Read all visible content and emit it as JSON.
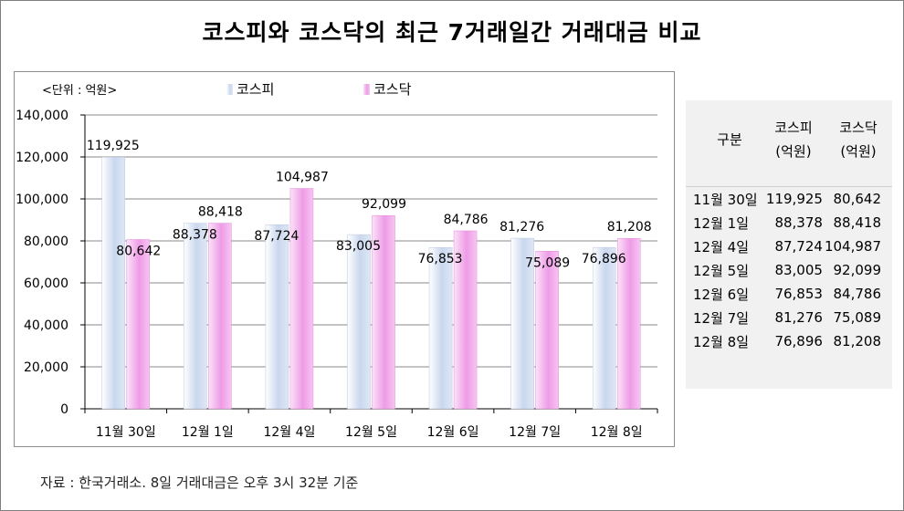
{
  "title": "코스피와 코스닥의 최근 7거래일간 거래대금 비교",
  "source_note": "자료 : 한국거래소. 8일 거래대금은 오후 3시 32분 기준",
  "colors": {
    "kospi": "#c9d7ee",
    "kosdaq": "#ee9be6",
    "grid": "#8a8a8a"
  },
  "chart_data": {
    "type": "bar",
    "unit_label": "<단위 : 억원>",
    "categories": [
      "11월 30일",
      "12월 1일",
      "12월 4일",
      "12월 5일",
      "12월 6일",
      "12월 7일",
      "12월 8일"
    ],
    "series": [
      {
        "name": "코스피",
        "values": [
          119925,
          88378,
          87724,
          83005,
          76853,
          81276,
          76896
        ]
      },
      {
        "name": "코스닥",
        "values": [
          80642,
          88418,
          104987,
          92099,
          84786,
          75089,
          81208
        ]
      }
    ],
    "y_ticks": [
      "0",
      "20,000",
      "40,000",
      "60,000",
      "80,000",
      "100,000",
      "120,000",
      "140,000"
    ],
    "ylim": [
      0,
      140000
    ],
    "grid": true,
    "legend_position": "top"
  },
  "table": {
    "headers": {
      "date": "구분",
      "kospi": "코스피",
      "kospi_unit": "(억원)",
      "kosdaq": "코스닥",
      "kosdaq_unit": "(억원)"
    },
    "rows": [
      {
        "date": "11월 30일",
        "kospi": "119,925",
        "kosdaq": "80,642"
      },
      {
        "date": "12월 1일",
        "kospi": "88,378",
        "kosdaq": "88,418"
      },
      {
        "date": "12월 4일",
        "kospi": "87,724",
        "kosdaq": "104,987"
      },
      {
        "date": "12월 5일",
        "kospi": "83,005",
        "kosdaq": "92,099"
      },
      {
        "date": "12월 6일",
        "kospi": "76,853",
        "kosdaq": "84,786"
      },
      {
        "date": "12월 7일",
        "kospi": "81,276",
        "kosdaq": "75,089"
      },
      {
        "date": "12월 8일",
        "kospi": "76,896",
        "kosdaq": "81,208"
      }
    ]
  }
}
